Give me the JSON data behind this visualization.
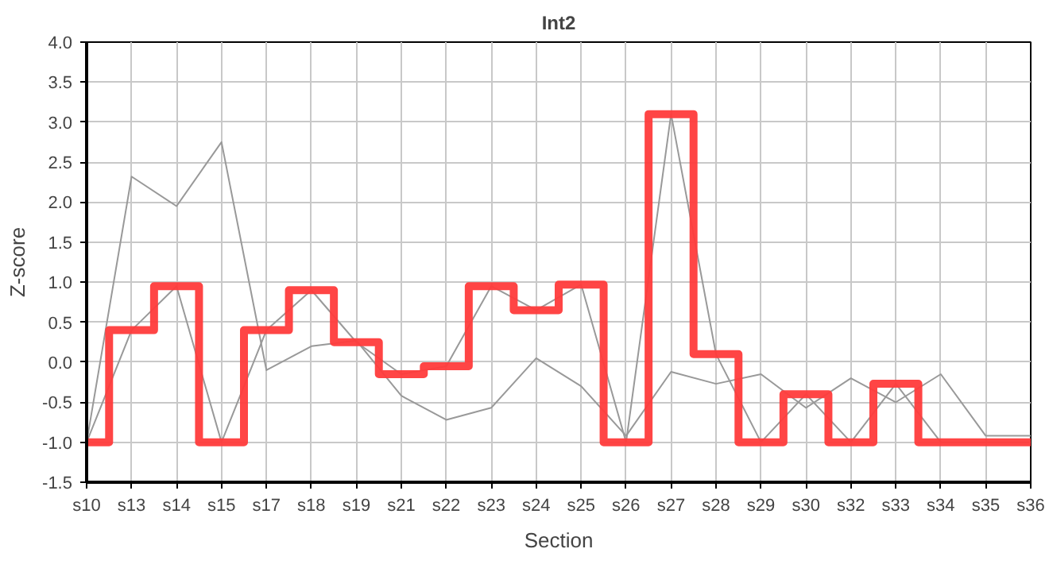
{
  "chart_data": {
    "type": "line",
    "title": "Int2",
    "xlabel": "Section",
    "ylabel": "Z-score",
    "categories": [
      "s10",
      "s13",
      "s14",
      "s15",
      "s17",
      "s18",
      "s19",
      "s21",
      "s22",
      "s23",
      "s24",
      "s25",
      "s26",
      "s27",
      "s28",
      "s29",
      "s30",
      "s32",
      "s33",
      "s34",
      "s35",
      "s36"
    ],
    "series": [
      {
        "color": "#999999",
        "values": [
          -1,
          2.32,
          1.95,
          2.75,
          -0.1,
          0.2,
          0.27,
          -0.42,
          -0.72,
          -0.57,
          0.05,
          -0.3,
          -0.92,
          -0.12,
          -0.27,
          -0.15,
          -0.57,
          -0.2,
          -0.5,
          -0.15,
          -0.92,
          -0.92
        ]
      },
      {
        "color": "#999999",
        "values": [
          -1,
          0.4,
          0.95,
          -1,
          0.4,
          0.9,
          0.25,
          -0.15,
          -0.05,
          0.95,
          0.65,
          0.97,
          -1,
          3.1,
          0.1,
          -1,
          -0.4,
          -1,
          -0.27,
          -1,
          -1,
          -1
        ]
      },
      {
        "type": "step",
        "color": "#ff3b3b",
        "values": [
          -1,
          0.4,
          0.95,
          -1,
          0.4,
          0.9,
          0.25,
          -0.15,
          -0.05,
          0.95,
          0.65,
          0.97,
          -1,
          3.1,
          0.1,
          -1,
          -0.4,
          -1,
          -0.27,
          -1,
          -1,
          -1
        ]
      }
    ],
    "ylim": [
      -1.5,
      4.0
    ],
    "yticks": [
      {
        "value": -1.5,
        "label": "-1.5"
      },
      {
        "value": -1,
        "label": "-1.0"
      },
      {
        "value": -0.5,
        "label": "-0.5"
      },
      {
        "value": 0,
        "label": "0.0"
      },
      {
        "value": 0.5,
        "label": "0.5"
      },
      {
        "value": 1,
        "label": "1.0"
      },
      {
        "value": 1.5,
        "label": "1.5"
      },
      {
        "value": 2,
        "label": "2.0"
      },
      {
        "value": 2.5,
        "label": "2.5"
      },
      {
        "value": 3,
        "label": "3.0"
      },
      {
        "value": 3.5,
        "label": "3.5"
      },
      {
        "value": 4,
        "label": "4.0"
      }
    ],
    "grid": true
  }
}
